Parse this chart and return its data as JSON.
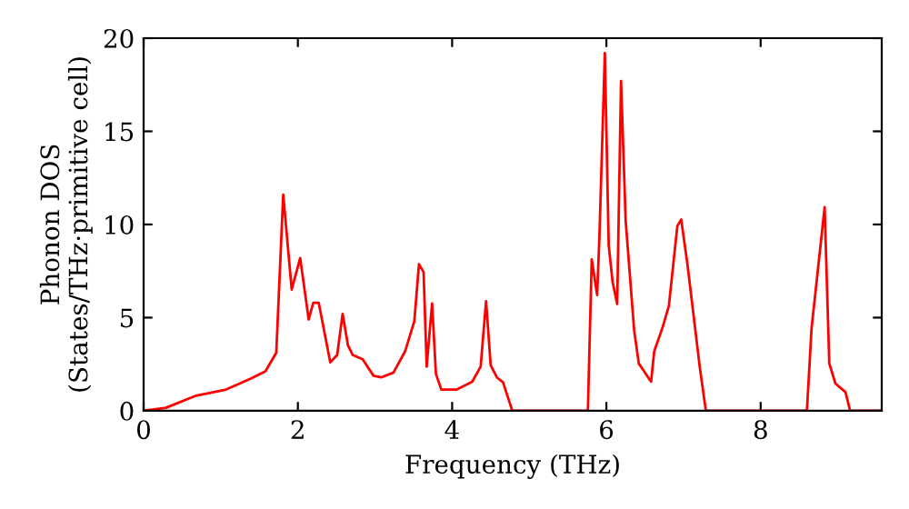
{
  "chart_data": {
    "type": "line",
    "xlabel": "Frequency (THz)",
    "ylabel": "Phonon DOS\n(States/THz·primitive cell)",
    "xlim": [
      0,
      9.57
    ],
    "ylim": [
      0,
      20
    ],
    "xticks": [
      0,
      2,
      4,
      6,
      8
    ],
    "yticks": [
      0,
      5,
      10,
      15,
      20
    ],
    "grid": false,
    "legend": false,
    "marker": "none",
    "line_style": "solid",
    "series": [
      {
        "color": "#ff0000",
        "x": [
          0,
          0.29,
          0.68,
          1.07,
          1.39,
          1.58,
          1.72,
          1.81,
          1.92,
          2.03,
          2.14,
          2.2,
          2.27,
          2.42,
          2.51,
          2.58,
          2.65,
          2.71,
          2.84,
          2.98,
          3.08,
          3.24,
          3.39,
          3.51,
          3.57,
          3.63,
          3.67,
          3.74,
          3.79,
          3.86,
          4.06,
          4.26,
          4.37,
          4.44,
          4.5,
          4.58,
          4.66,
          4.78,
          5.76,
          5.81,
          5.88,
          5.91,
          5.98,
          6.03,
          6.08,
          6.14,
          6.19,
          6.25,
          6.36,
          6.42,
          6.58,
          6.62,
          6.73,
          6.81,
          6.92,
          6.97,
          7.05,
          7.21,
          7.29,
          8.6,
          8.66,
          8.83,
          8.89,
          8.97,
          9.1,
          9.16,
          9.56
        ],
        "values": [
          0,
          0.16,
          0.81,
          1.14,
          1.73,
          2.12,
          3.12,
          11.6,
          6.5,
          8.2,
          4.9,
          5.8,
          5.8,
          2.6,
          3.0,
          5.2,
          3.5,
          3.0,
          2.76,
          1.88,
          1.79,
          2.05,
          3.19,
          4.81,
          7.87,
          7.44,
          2.37,
          5.76,
          1.98,
          1.14,
          1.14,
          1.56,
          2.37,
          5.88,
          2.44,
          1.79,
          1.53,
          0,
          0,
          8.13,
          6.21,
          9.37,
          19.2,
          8.88,
          6.93,
          5.73,
          17.7,
          10.2,
          4.32,
          2.54,
          1.56,
          3.19,
          4.49,
          5.63,
          9.92,
          10.27,
          7.9,
          2.37,
          0,
          0,
          4.42,
          10.93,
          2.54,
          1.46,
          1.0,
          0,
          0
        ]
      }
    ]
  }
}
